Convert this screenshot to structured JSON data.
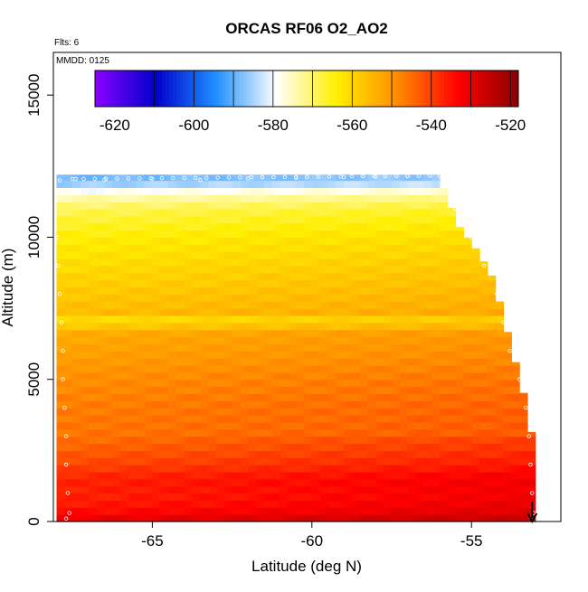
{
  "chart_data": {
    "type": "heatmap",
    "title": "ORCAS RF06 O2_AO2",
    "annotations": {
      "flights": "Flts: 6",
      "date": "MMDD: 0125"
    },
    "xlabel": "Latitude (deg N)",
    "ylabel": "Altitude (m)",
    "xlim": [
      -68.1,
      -52.2
    ],
    "ylim": [
      0,
      16500
    ],
    "x_ticks": [
      -65,
      -60,
      -55
    ],
    "x_tick_labels": [
      "-65",
      "-60",
      "-55"
    ],
    "y_ticks": [
      0,
      5000,
      10000,
      15000
    ],
    "y_tick_labels": [
      "0",
      "5000",
      "10000",
      "15000"
    ],
    "colorbar": {
      "min": -625,
      "max": -518,
      "ticks": [
        -620,
        -600,
        -580,
        -560,
        -540,
        -520
      ],
      "tick_labels": [
        "-620",
        "-600",
        "-580",
        "-560",
        "-540",
        "-520"
      ],
      "divisions": [
        -610,
        -600,
        -590,
        -580,
        -570,
        -560,
        -550,
        -540,
        -530,
        -520
      ],
      "colors": [
        "#8b00ff",
        "#0000cc",
        "#1e90ff",
        "#ffffff",
        "#ffef00",
        "#ff8c00",
        "#ff0000",
        "#8b0000"
      ],
      "placement": "top-inside"
    },
    "field": {
      "x_start": -68.0,
      "x_step": 0.25,
      "z_step": 250,
      "top_altitude_profile": [
        [
          -68.0,
          12200
        ],
        [
          -56.0,
          12200
        ],
        [
          -55.9,
          11800
        ],
        [
          -55.4,
          10400
        ],
        [
          -54.8,
          9500
        ],
        [
          -54.3,
          8500
        ],
        [
          -54.0,
          7200
        ],
        [
          -53.6,
          5500
        ],
        [
          -53.3,
          4200
        ],
        [
          -53.1,
          3000
        ],
        [
          -52.9,
          300
        ]
      ],
      "profiles": [
        {
          "z": 0,
          "v": -530
        },
        {
          "z": 400,
          "v": -535
        },
        {
          "z": 800,
          "v": -537
        },
        {
          "z": 1500,
          "v": -537
        },
        {
          "z": 2000,
          "v": -541
        },
        {
          "z": 3000,
          "v": -546
        },
        {
          "z": 4000,
          "v": -547
        },
        {
          "z": 5000,
          "v": -549
        },
        {
          "z": 6000,
          "v": -552
        },
        {
          "z": 6800,
          "v": -554
        },
        {
          "z": 7000,
          "v": -565
        },
        {
          "z": 7300,
          "v": -556
        },
        {
          "z": 8000,
          "v": -558
        },
        {
          "z": 9000,
          "v": -561
        },
        {
          "z": 10000,
          "v": -564
        },
        {
          "z": 11000,
          "v": -569
        },
        {
          "z": 11500,
          "v": -576
        },
        {
          "z": 12000,
          "v": -589
        }
      ],
      "latitude_gradient": 0.55,
      "surface_gradient": 0.25
    },
    "flight_track": [
      [
        -67.9,
        12000
      ],
      [
        -67.4,
        12050
      ],
      [
        -66.5,
        12030
      ],
      [
        -65.0,
        12060
      ],
      [
        -63.5,
        12010
      ],
      [
        -62.0,
        12070
      ],
      [
        -60.5,
        12090
      ],
      [
        -59.0,
        12110
      ],
      [
        -58.0,
        12130
      ],
      [
        -57.0,
        12150
      ],
      [
        -56.0,
        12160
      ],
      [
        -55.7,
        11800
      ],
      [
        -55.5,
        11000
      ],
      [
        -55.0,
        10000
      ],
      [
        -54.6,
        9000
      ],
      [
        -54.2,
        8000
      ],
      [
        -54.0,
        7000
      ],
      [
        -53.8,
        6000
      ],
      [
        -53.5,
        5000
      ],
      [
        -53.3,
        4000
      ],
      [
        -53.2,
        3000
      ],
      [
        -53.15,
        2000
      ],
      [
        -53.1,
        1000
      ],
      [
        -53.05,
        300
      ],
      [
        -68.0,
        11500
      ],
      [
        -68.0,
        10000
      ],
      [
        -67.95,
        9000
      ],
      [
        -67.9,
        8000
      ],
      [
        -67.85,
        7000
      ],
      [
        -67.8,
        6000
      ],
      [
        -67.8,
        5000
      ],
      [
        -67.75,
        4000
      ],
      [
        -67.7,
        3000
      ],
      [
        -67.7,
        2000
      ],
      [
        -67.65,
        1000
      ],
      [
        -67.6,
        300
      ],
      [
        -67.7,
        100
      ]
    ],
    "arrow": {
      "x": -53.1,
      "z_from": 700,
      "z_to": 0
    }
  }
}
